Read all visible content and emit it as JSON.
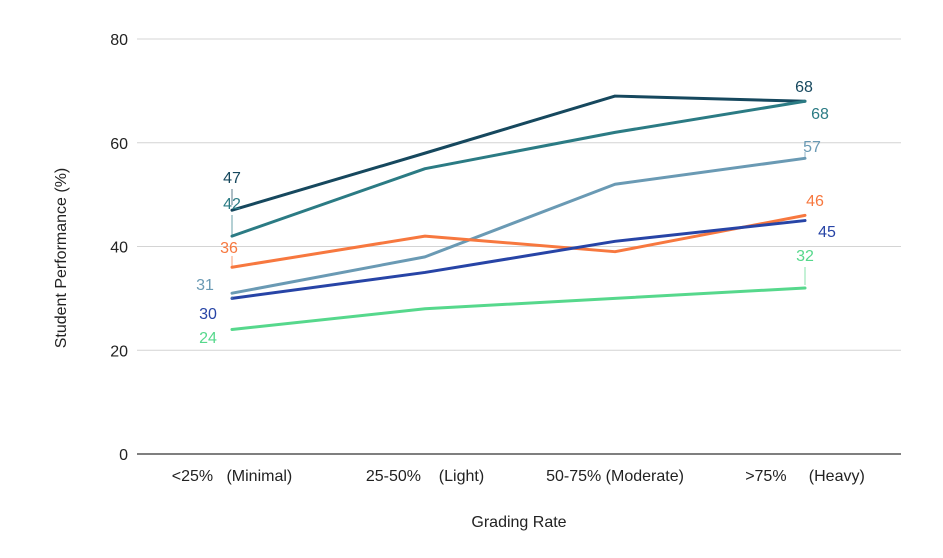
{
  "chart_data": {
    "type": "line",
    "title": "",
    "xlabel": "Grading Rate",
    "ylabel": "Student Performance (%)",
    "ylim": [
      0,
      80
    ],
    "yticks": [
      0,
      20,
      40,
      60,
      80
    ],
    "grid": true,
    "legend": "none",
    "categories": [
      "<25%   (Minimal)",
      "25-50%    (Light)",
      "50-75% (Moderate)",
      ">75%     (Heavy)"
    ],
    "series": [
      {
        "color": "#16485e",
        "values": [
          47,
          58,
          69,
          68
        ],
        "labeled": [
          0,
          3
        ]
      },
      {
        "color": "#2b7b84",
        "values": [
          42,
          55,
          62,
          68
        ],
        "labeled": [
          0,
          3
        ]
      },
      {
        "color": "#6a9ab4",
        "values": [
          31,
          38,
          52,
          57
        ],
        "labeled": [
          0,
          3
        ]
      },
      {
        "color": "#f7783f",
        "values": [
          36,
          42,
          39,
          46
        ],
        "labeled": [
          0,
          3
        ]
      },
      {
        "color": "#2744a6",
        "values": [
          30,
          35,
          41,
          45
        ],
        "labeled": [
          0,
          3
        ]
      },
      {
        "color": "#56d88c",
        "values": [
          24,
          28,
          30,
          32
        ],
        "labeled": [
          0,
          3
        ]
      }
    ]
  }
}
